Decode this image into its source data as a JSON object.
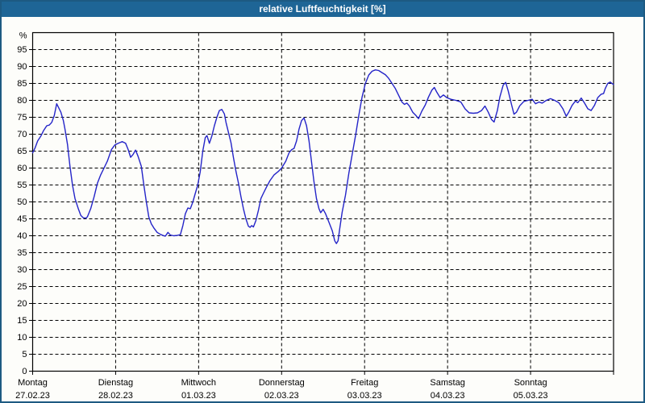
{
  "window": {
    "title": "relative Luftfeuchtigkeit [%]"
  },
  "colors": {
    "outer_border": "#1d5a82",
    "titlebar_bg": "#1e6596",
    "titlebar_text": "#ffffff",
    "background": "#fdfdfa",
    "plot_border": "#000000",
    "grid": "#000000",
    "tick": "#000000",
    "label": "#000000",
    "line": "#2424c8"
  },
  "chart_data": {
    "type": "line",
    "title": "relative Luftfeuchtigkeit [%]",
    "unit_label": "%",
    "grid": "dashed",
    "legend": "none",
    "y_axis": {
      "min": 0,
      "max": 100,
      "tick_step": 5,
      "tick_labels": [
        0,
        5,
        10,
        15,
        20,
        25,
        30,
        35,
        40,
        45,
        50,
        55,
        60,
        65,
        70,
        75,
        80,
        85,
        90,
        95
      ]
    },
    "x_axis": {
      "unit": "days",
      "range_days": 7,
      "days": [
        {
          "name": "Montag",
          "date": "27.02.23"
        },
        {
          "name": "Dienstag",
          "date": "28.02.23"
        },
        {
          "name": "Mittwoch",
          "date": "01.03.23"
        },
        {
          "name": "Donnerstag",
          "date": "02.03.23"
        },
        {
          "name": "Freitag",
          "date": "03.03.23"
        },
        {
          "name": "Samstag",
          "date": "04.03.23"
        },
        {
          "name": "Sonntag",
          "date": "05.03.23"
        }
      ]
    },
    "series": [
      {
        "name": "relative Luftfeuchtigkeit",
        "color": "#2424c8",
        "points": [
          [
            0.0,
            64.5
          ],
          [
            0.03,
            66
          ],
          [
            0.06,
            68
          ],
          [
            0.1,
            69.5
          ],
          [
            0.13,
            71
          ],
          [
            0.17,
            72.5
          ],
          [
            0.2,
            72.7
          ],
          [
            0.23,
            73.5
          ],
          [
            0.26,
            75.5
          ],
          [
            0.29,
            79
          ],
          [
            0.31,
            78
          ],
          [
            0.34,
            76.5
          ],
          [
            0.37,
            74
          ],
          [
            0.39,
            71.5
          ],
          [
            0.42,
            67
          ],
          [
            0.45,
            60.5
          ],
          [
            0.48,
            55
          ],
          [
            0.51,
            51
          ],
          [
            0.55,
            48
          ],
          [
            0.58,
            46
          ],
          [
            0.61,
            45.3
          ],
          [
            0.64,
            45.2
          ],
          [
            0.66,
            45.6
          ],
          [
            0.7,
            48
          ],
          [
            0.74,
            51.5
          ],
          [
            0.78,
            55.5
          ],
          [
            0.82,
            58
          ],
          [
            0.86,
            60
          ],
          [
            0.9,
            62
          ],
          [
            0.95,
            65.5
          ],
          [
            0.99,
            66.8
          ],
          [
            1.04,
            67.4
          ],
          [
            1.08,
            67.8
          ],
          [
            1.12,
            67.3
          ],
          [
            1.15,
            65.5
          ],
          [
            1.18,
            63.2
          ],
          [
            1.21,
            64
          ],
          [
            1.24,
            65.3
          ],
          [
            1.27,
            63.5
          ],
          [
            1.31,
            60.5
          ],
          [
            1.34,
            55
          ],
          [
            1.37,
            50
          ],
          [
            1.4,
            45.5
          ],
          [
            1.43,
            43.5
          ],
          [
            1.46,
            42.3
          ],
          [
            1.5,
            41
          ],
          [
            1.54,
            40.4
          ],
          [
            1.58,
            40
          ],
          [
            1.6,
            39.9
          ],
          [
            1.63,
            41
          ],
          [
            1.66,
            40.2
          ],
          [
            1.7,
            40
          ],
          [
            1.74,
            40.1
          ],
          [
            1.78,
            40.3
          ],
          [
            1.81,
            43
          ],
          [
            1.84,
            46.5
          ],
          [
            1.87,
            48.2
          ],
          [
            1.9,
            48
          ],
          [
            1.93,
            50
          ],
          [
            1.96,
            52.5
          ],
          [
            1.99,
            55
          ],
          [
            2.02,
            59
          ],
          [
            2.05,
            65
          ],
          [
            2.08,
            69
          ],
          [
            2.1,
            69.6
          ],
          [
            2.13,
            67.3
          ],
          [
            2.16,
            69.5
          ],
          [
            2.19,
            72.5
          ],
          [
            2.22,
            75
          ],
          [
            2.25,
            77
          ],
          [
            2.28,
            77.3
          ],
          [
            2.31,
            76
          ],
          [
            2.33,
            73.5
          ],
          [
            2.36,
            70.5
          ],
          [
            2.39,
            67.5
          ],
          [
            2.42,
            63
          ],
          [
            2.45,
            59
          ],
          [
            2.48,
            55.5
          ],
          [
            2.51,
            51.5
          ],
          [
            2.54,
            48
          ],
          [
            2.57,
            45
          ],
          [
            2.6,
            42.8
          ],
          [
            2.62,
            42.5
          ],
          [
            2.64,
            43
          ],
          [
            2.66,
            42.6
          ],
          [
            2.69,
            44.5
          ],
          [
            2.72,
            47.5
          ],
          [
            2.75,
            51
          ],
          [
            2.78,
            52.5
          ],
          [
            2.82,
            54.5
          ],
          [
            2.86,
            56.3
          ],
          [
            2.91,
            58
          ],
          [
            2.96,
            59
          ],
          [
            3.0,
            60
          ],
          [
            3.05,
            62
          ],
          [
            3.09,
            64.5
          ],
          [
            3.12,
            65.4
          ],
          [
            3.15,
            65.8
          ],
          [
            3.18,
            68
          ],
          [
            3.21,
            71.5
          ],
          [
            3.24,
            74
          ],
          [
            3.27,
            74.8
          ],
          [
            3.3,
            72.5
          ],
          [
            3.33,
            68
          ],
          [
            3.36,
            62
          ],
          [
            3.39,
            56
          ],
          [
            3.42,
            51
          ],
          [
            3.45,
            48
          ],
          [
            3.47,
            46.8
          ],
          [
            3.5,
            47.8
          ],
          [
            3.53,
            46.5
          ],
          [
            3.57,
            44
          ],
          [
            3.61,
            41.5
          ],
          [
            3.64,
            38.5
          ],
          [
            3.66,
            37.7
          ],
          [
            3.68,
            38.5
          ],
          [
            3.7,
            42
          ],
          [
            3.73,
            47
          ],
          [
            3.77,
            52
          ],
          [
            3.81,
            58.5
          ],
          [
            3.85,
            64
          ],
          [
            3.89,
            69.5
          ],
          [
            3.93,
            75.5
          ],
          [
            3.97,
            81
          ],
          [
            4.01,
            85
          ],
          [
            4.05,
            87.5
          ],
          [
            4.09,
            88.6
          ],
          [
            4.13,
            89
          ],
          [
            4.17,
            88.8
          ],
          [
            4.21,
            88.2
          ],
          [
            4.25,
            87.6
          ],
          [
            4.29,
            86.5
          ],
          [
            4.33,
            85
          ],
          [
            4.37,
            83.5
          ],
          [
            4.41,
            81.5
          ],
          [
            4.45,
            79.5
          ],
          [
            4.48,
            78.8
          ],
          [
            4.51,
            79.2
          ],
          [
            4.54,
            78.3
          ],
          [
            4.58,
            76.5
          ],
          [
            4.62,
            75.5
          ],
          [
            4.65,
            74.6
          ],
          [
            4.69,
            76.8
          ],
          [
            4.73,
            78.6
          ],
          [
            4.77,
            81
          ],
          [
            4.81,
            83
          ],
          [
            4.84,
            83.8
          ],
          [
            4.87,
            82.4
          ],
          [
            4.91,
            80.8
          ],
          [
            4.95,
            81.6
          ],
          [
            4.99,
            80.8
          ],
          [
            5.04,
            80.3
          ],
          [
            5.1,
            80
          ],
          [
            5.16,
            79.5
          ],
          [
            5.21,
            77.5
          ],
          [
            5.26,
            76.3
          ],
          [
            5.31,
            76.2
          ],
          [
            5.36,
            76.3
          ],
          [
            5.41,
            77
          ],
          [
            5.45,
            78.3
          ],
          [
            5.49,
            76.5
          ],
          [
            5.53,
            74.3
          ],
          [
            5.56,
            73.6
          ],
          [
            5.6,
            77
          ],
          [
            5.63,
            81
          ],
          [
            5.67,
            84.5
          ],
          [
            5.7,
            85.3
          ],
          [
            5.73,
            82.8
          ],
          [
            5.77,
            78.8
          ],
          [
            5.8,
            75.9
          ],
          [
            5.83,
            76.5
          ],
          [
            5.87,
            78.4
          ],
          [
            5.92,
            79.7
          ],
          [
            5.97,
            80
          ],
          [
            6.02,
            80.3
          ],
          [
            6.06,
            79
          ],
          [
            6.1,
            79.5
          ],
          [
            6.14,
            79.2
          ],
          [
            6.19,
            80
          ],
          [
            6.24,
            80.5
          ],
          [
            6.29,
            80
          ],
          [
            6.34,
            79.3
          ],
          [
            6.39,
            77.5
          ],
          [
            6.43,
            75.3
          ],
          [
            6.46,
            76.5
          ],
          [
            6.5,
            78.5
          ],
          [
            6.54,
            79.8
          ],
          [
            6.57,
            79.3
          ],
          [
            6.61,
            80.7
          ],
          [
            6.65,
            79.2
          ],
          [
            6.69,
            77.5
          ],
          [
            6.73,
            77
          ],
          [
            6.77,
            78.5
          ],
          [
            6.81,
            80.8
          ],
          [
            6.85,
            81.8
          ],
          [
            6.88,
            82
          ],
          [
            6.9,
            83.5
          ],
          [
            6.93,
            85
          ],
          [
            6.96,
            85.4
          ],
          [
            6.98,
            85
          ],
          [
            7.0,
            84.7
          ]
        ]
      }
    ]
  }
}
